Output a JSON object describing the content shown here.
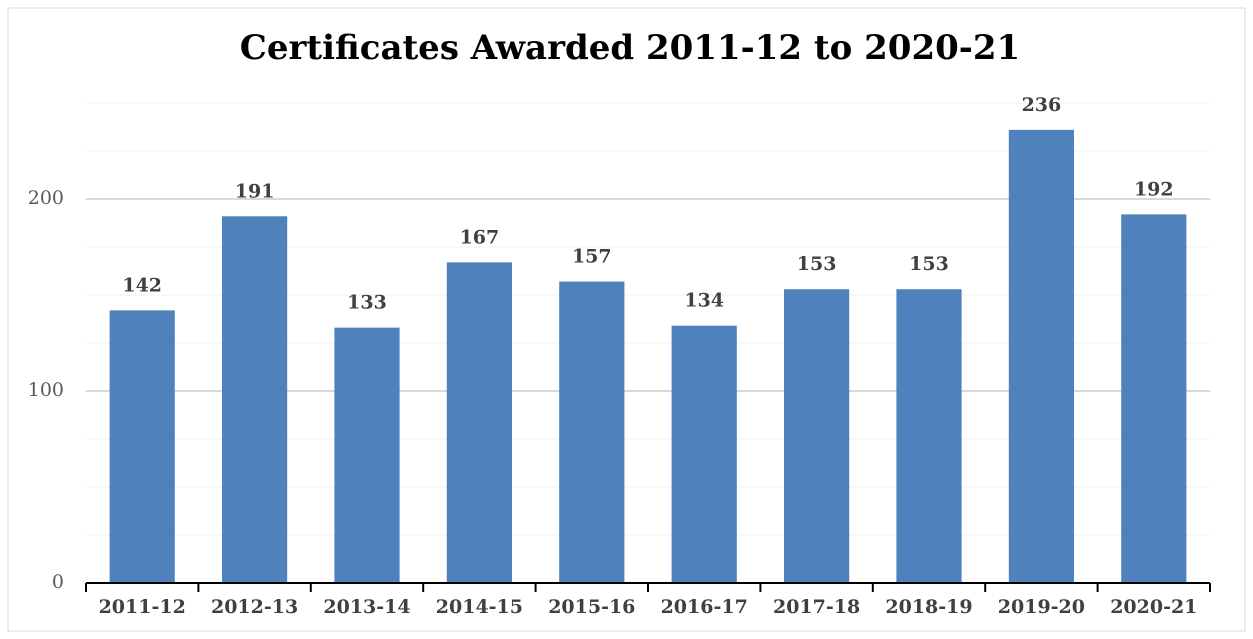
{
  "chart_data": {
    "type": "bar",
    "title": "Certificates Awarded 2011-12 to 2020-21",
    "categories": [
      "2011-12",
      "2012-13",
      "2013-14",
      "2014-15",
      "2015-16",
      "2016-17",
      "2017-18",
      "2018-19",
      "2019-20",
      "2020-21"
    ],
    "values": [
      142,
      191,
      133,
      167,
      157,
      134,
      153,
      153,
      236,
      192
    ],
    "color": "#4f81bd",
    "ylim": [
      0,
      250
    ],
    "yticks": [
      0,
      100,
      200
    ],
    "yticks_minor": [
      25,
      50,
      75,
      125,
      150,
      175,
      225,
      250
    ],
    "grid": true
  }
}
